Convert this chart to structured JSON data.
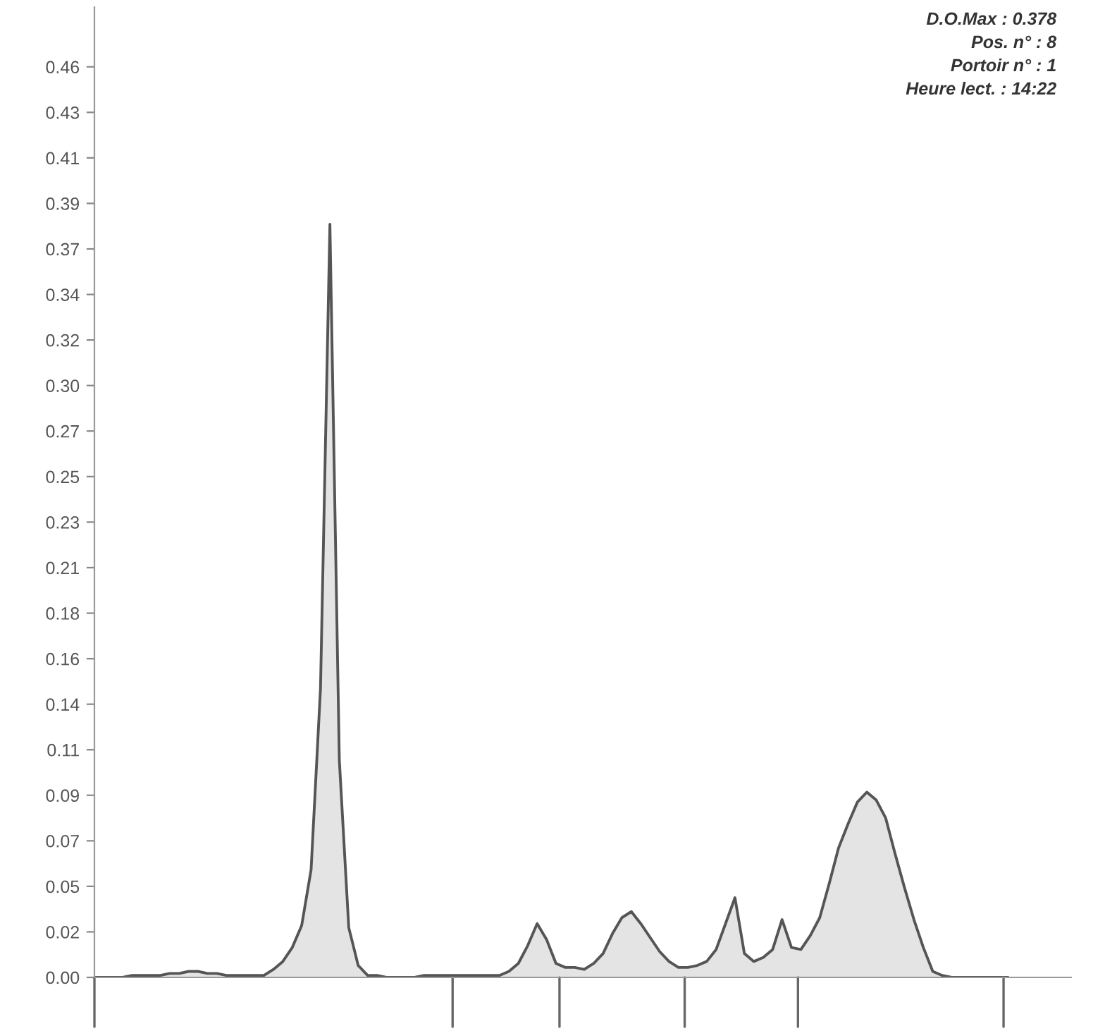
{
  "chart_data": {
    "type": "area",
    "categories": [
      null,
      null,
      null,
      null,
      null,
      null,
      null,
      null,
      null,
      null,
      null,
      null,
      null,
      null,
      null,
      null,
      null,
      null,
      null,
      null,
      null,
      null,
      null,
      null,
      null,
      null,
      null,
      null,
      null,
      null,
      null,
      null,
      null,
      null,
      null,
      null,
      null,
      null,
      null,
      null,
      null,
      null,
      null,
      null,
      null,
      null,
      null,
      null,
      null,
      null,
      null,
      null,
      null,
      null,
      null,
      null,
      null,
      null,
      null,
      null,
      null,
      null,
      null,
      null,
      null,
      null,
      null,
      null,
      null,
      null,
      null,
      null,
      null,
      null,
      null,
      null,
      null,
      null,
      null,
      null,
      null,
      null,
      null,
      null,
      null,
      null,
      null,
      null,
      null,
      null,
      null,
      null,
      null,
      null,
      null,
      null,
      null,
      null
    ],
    "series": [
      {
        "color": "#555555",
        "values": [
          0,
          0,
          0,
          0,
          0.001,
          0.001,
          0.001,
          0.001,
          0.002,
          0.002,
          0.003,
          0.003,
          0.002,
          0.002,
          0.001,
          0.001,
          0.001,
          0.001,
          0.001,
          0.004,
          0.008,
          0.015,
          0.026,
          0.054,
          0.145,
          0.378,
          0.109,
          0.025,
          0.006,
          0.001,
          0.001,
          0,
          0,
          0,
          0,
          0.001,
          0.001,
          0.001,
          0.001,
          0.001,
          0.001,
          0.001,
          0.001,
          0.001,
          0.003,
          0.007,
          0.016,
          0.027,
          0.019,
          0.007,
          0.005,
          0.005,
          0.004,
          0.007,
          0.012,
          0.022,
          0.03,
          0.033,
          0.027,
          0.02,
          0.013,
          0.008,
          0.005,
          0.005,
          0.006,
          0.008,
          0.014,
          0.027,
          0.04,
          0.012,
          0.008,
          0.01,
          0.014,
          0.029,
          0.015,
          0.014,
          0.021,
          0.03,
          0.047,
          0.065,
          0.077,
          0.088,
          0.093,
          0.089,
          0.08,
          0.062,
          0.045,
          0.029,
          0.015,
          0.003,
          0.001,
          0,
          0,
          0,
          0,
          0,
          0,
          0
        ]
      }
    ],
    "ylim": [
      0,
      0.487
    ],
    "yticks": [
      {
        "value": 0,
        "label": "0.00"
      },
      {
        "value": 0.02285,
        "label": "0.02"
      },
      {
        "value": 0.0457,
        "label": "0.05"
      },
      {
        "value": 0.06855,
        "label": "0.07"
      },
      {
        "value": 0.0914,
        "label": "0.09"
      },
      {
        "value": 0.11425,
        "label": "0.11"
      },
      {
        "value": 0.1371,
        "label": "0.14"
      },
      {
        "value": 0.15995,
        "label": "0.16"
      },
      {
        "value": 0.1828,
        "label": "0.18"
      },
      {
        "value": 0.20565,
        "label": "0.21"
      },
      {
        "value": 0.2285,
        "label": "0.23"
      },
      {
        "value": 0.25135,
        "label": "0.25"
      },
      {
        "value": 0.2742,
        "label": "0.27"
      },
      {
        "value": 0.29705,
        "label": "0.30"
      },
      {
        "value": 0.3199,
        "label": "0.32"
      },
      {
        "value": 0.34275,
        "label": "0.34"
      },
      {
        "value": 0.3656,
        "label": "0.37"
      },
      {
        "value": 0.38845,
        "label": "0.39"
      },
      {
        "value": 0.4113,
        "label": "0.41"
      },
      {
        "value": 0.43415,
        "label": "0.43"
      },
      {
        "value": 0.457,
        "label": "0.46"
      }
    ],
    "grid": false,
    "annotations": [
      "D.O.Max : 0.378",
      "Pos. n° : 8",
      "Portoir n° : 1",
      "Heure lect. : 14:22"
    ]
  }
}
